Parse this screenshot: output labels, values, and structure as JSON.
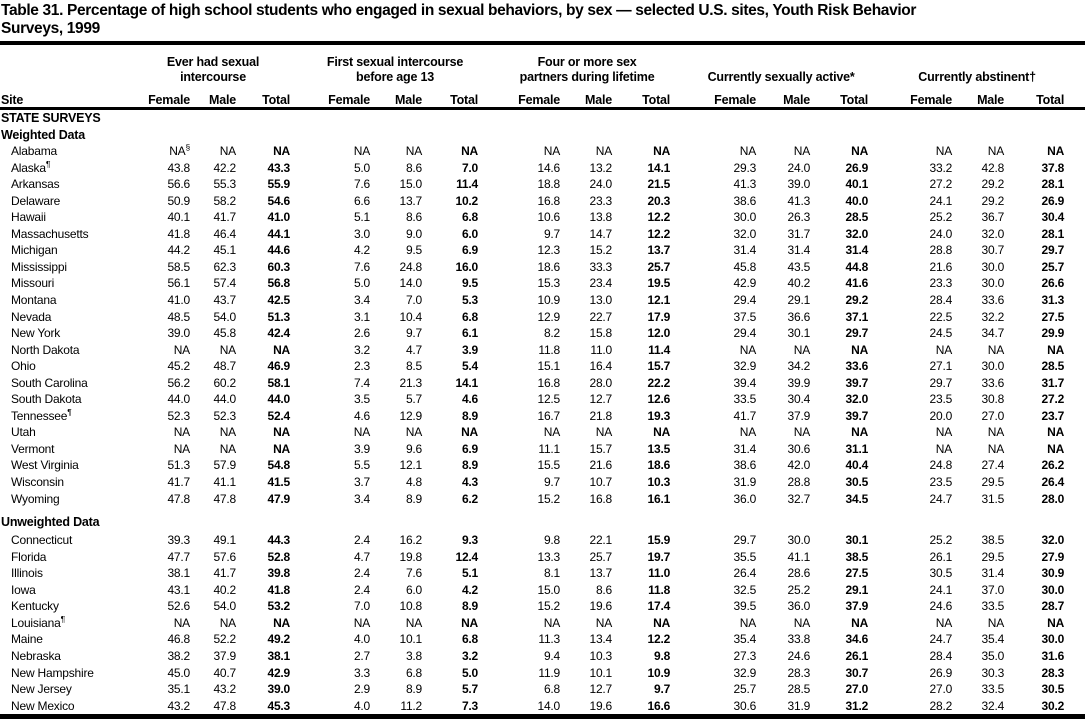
{
  "title": {
    "line1": "Table 31. Percentage of high school students who engaged in sexual behaviors, by sex — selected U.S. sites, Youth Risk Behavior",
    "line2": "Surveys, 1999"
  },
  "table": {
    "site_header": "Site",
    "sub_headers": [
      "Female",
      "Male",
      "Total"
    ],
    "col_groups": [
      {
        "label": "Ever had sexual\nintercourse"
      },
      {
        "label": "First sexual intercourse\nbefore age 13"
      },
      {
        "label": "Four or more sex\npartners during lifetime"
      },
      {
        "label": "Currently sexually active*"
      },
      {
        "label": "Currently abstinent†"
      }
    ],
    "sections": [
      {
        "heading": "STATE SURVEYS",
        "subheading": "Weighted Data",
        "rows": [
          {
            "site": "Alabama",
            "values": [
              "NA§",
              "NA",
              "NA",
              "NA",
              "NA",
              "NA",
              "NA",
              "NA",
              "NA",
              "NA",
              "NA",
              "NA",
              "NA",
              "NA",
              "NA"
            ]
          },
          {
            "site": "Alaska¶",
            "values": [
              "43.8",
              "42.2",
              "43.3",
              "5.0",
              "8.6",
              "7.0",
              "14.6",
              "13.2",
              "14.1",
              "29.3",
              "24.0",
              "26.9",
              "33.2",
              "42.8",
              "37.8"
            ]
          },
          {
            "site": "Arkansas",
            "values": [
              "56.6",
              "55.3",
              "55.9",
              "7.6",
              "15.0",
              "11.4",
              "18.8",
              "24.0",
              "21.5",
              "41.3",
              "39.0",
              "40.1",
              "27.2",
              "29.2",
              "28.1"
            ]
          },
          {
            "site": "Delaware",
            "values": [
              "50.9",
              "58.2",
              "54.6",
              "6.6",
              "13.7",
              "10.2",
              "16.8",
              "23.3",
              "20.3",
              "38.6",
              "41.3",
              "40.0",
              "24.1",
              "29.2",
              "26.9"
            ]
          },
          {
            "site": "Hawaii",
            "values": [
              "40.1",
              "41.7",
              "41.0",
              "5.1",
              "8.6",
              "6.8",
              "10.6",
              "13.8",
              "12.2",
              "30.0",
              "26.3",
              "28.5",
              "25.2",
              "36.7",
              "30.4"
            ]
          },
          {
            "site": "Massachusetts",
            "values": [
              "41.8",
              "46.4",
              "44.1",
              "3.0",
              "9.0",
              "6.0",
              "9.7",
              "14.7",
              "12.2",
              "32.0",
              "31.7",
              "32.0",
              "24.0",
              "32.0",
              "28.1"
            ]
          },
          {
            "site": "Michigan",
            "values": [
              "44.2",
              "45.1",
              "44.6",
              "4.2",
              "9.5",
              "6.9",
              "12.3",
              "15.2",
              "13.7",
              "31.4",
              "31.4",
              "31.4",
              "28.8",
              "30.7",
              "29.7"
            ]
          },
          {
            "site": "Mississippi",
            "values": [
              "58.5",
              "62.3",
              "60.3",
              "7.6",
              "24.8",
              "16.0",
              "18.6",
              "33.3",
              "25.7",
              "45.8",
              "43.5",
              "44.8",
              "21.6",
              "30.0",
              "25.7"
            ]
          },
          {
            "site": "Missouri",
            "values": [
              "56.1",
              "57.4",
              "56.8",
              "5.0",
              "14.0",
              "9.5",
              "15.3",
              "23.4",
              "19.5",
              "42.9",
              "40.2",
              "41.6",
              "23.3",
              "30.0",
              "26.6"
            ]
          },
          {
            "site": "Montana",
            "values": [
              "41.0",
              "43.7",
              "42.5",
              "3.4",
              "7.0",
              "5.3",
              "10.9",
              "13.0",
              "12.1",
              "29.4",
              "29.1",
              "29.2",
              "28.4",
              "33.6",
              "31.3"
            ]
          },
          {
            "site": "Nevada",
            "values": [
              "48.5",
              "54.0",
              "51.3",
              "3.1",
              "10.4",
              "6.8",
              "12.9",
              "22.7",
              "17.9",
              "37.5",
              "36.6",
              "37.1",
              "22.5",
              "32.2",
              "27.5"
            ]
          },
          {
            "site": "New York",
            "values": [
              "39.0",
              "45.8",
              "42.4",
              "2.6",
              "9.7",
              "6.1",
              "8.2",
              "15.8",
              "12.0",
              "29.4",
              "30.1",
              "29.7",
              "24.5",
              "34.7",
              "29.9"
            ]
          },
          {
            "site": "North Dakota",
            "values": [
              "NA",
              "NA",
              "NA",
              "3.2",
              "4.7",
              "3.9",
              "11.8",
              "11.0",
              "11.4",
              "NA",
              "NA",
              "NA",
              "NA",
              "NA",
              "NA"
            ]
          },
          {
            "site": "Ohio",
            "values": [
              "45.2",
              "48.7",
              "46.9",
              "2.3",
              "8.5",
              "5.4",
              "15.1",
              "16.4",
              "15.7",
              "32.9",
              "34.2",
              "33.6",
              "27.1",
              "30.0",
              "28.5"
            ]
          },
          {
            "site": "South Carolina",
            "values": [
              "56.2",
              "60.2",
              "58.1",
              "7.4",
              "21.3",
              "14.1",
              "16.8",
              "28.0",
              "22.2",
              "39.4",
              "39.9",
              "39.7",
              "29.7",
              "33.6",
              "31.7"
            ]
          },
          {
            "site": "South Dakota",
            "values": [
              "44.0",
              "44.0",
              "44.0",
              "3.5",
              "5.7",
              "4.6",
              "12.5",
              "12.7",
              "12.6",
              "33.5",
              "30.4",
              "32.0",
              "23.5",
              "30.8",
              "27.2"
            ]
          },
          {
            "site": "Tennessee¶",
            "values": [
              "52.3",
              "52.3",
              "52.4",
              "4.6",
              "12.9",
              "8.9",
              "16.7",
              "21.8",
              "19.3",
              "41.7",
              "37.9",
              "39.7",
              "20.0",
              "27.0",
              "23.7"
            ]
          },
          {
            "site": "Utah",
            "values": [
              "NA",
              "NA",
              "NA",
              "NA",
              "NA",
              "NA",
              "NA",
              "NA",
              "NA",
              "NA",
              "NA",
              "NA",
              "NA",
              "NA",
              "NA"
            ]
          },
          {
            "site": "Vermont",
            "values": [
              "NA",
              "NA",
              "NA",
              "3.9",
              "9.6",
              "6.9",
              "11.1",
              "15.7",
              "13.5",
              "31.4",
              "30.6",
              "31.1",
              "NA",
              "NA",
              "NA"
            ]
          },
          {
            "site": "West Virginia",
            "values": [
              "51.3",
              "57.9",
              "54.8",
              "5.5",
              "12.1",
              "8.9",
              "15.5",
              "21.6",
              "18.6",
              "38.6",
              "42.0",
              "40.4",
              "24.8",
              "27.4",
              "26.2"
            ]
          },
          {
            "site": "Wisconsin",
            "values": [
              "41.7",
              "41.1",
              "41.5",
              "3.7",
              "4.8",
              "4.3",
              "9.7",
              "10.7",
              "10.3",
              "31.9",
              "28.8",
              "30.5",
              "23.5",
              "29.5",
              "26.4"
            ]
          },
          {
            "site": "Wyoming",
            "values": [
              "47.8",
              "47.8",
              "47.9",
              "3.4",
              "8.9",
              "6.2",
              "15.2",
              "16.8",
              "16.1",
              "36.0",
              "32.7",
              "34.5",
              "24.7",
              "31.5",
              "28.0"
            ]
          }
        ]
      },
      {
        "heading": null,
        "subheading": "Unweighted Data",
        "rows": [
          {
            "site": "Connecticut",
            "values": [
              "39.3",
              "49.1",
              "44.3",
              "2.4",
              "16.2",
              "9.3",
              "9.8",
              "22.1",
              "15.9",
              "29.7",
              "30.0",
              "30.1",
              "25.2",
              "38.5",
              "32.0"
            ]
          },
          {
            "site": "Florida",
            "values": [
              "47.7",
              "57.6",
              "52.8",
              "4.7",
              "19.8",
              "12.4",
              "13.3",
              "25.7",
              "19.7",
              "35.5",
              "41.1",
              "38.5",
              "26.1",
              "29.5",
              "27.9"
            ]
          },
          {
            "site": "Illinois",
            "values": [
              "38.1",
              "41.7",
              "39.8",
              "2.4",
              "7.6",
              "5.1",
              "8.1",
              "13.7",
              "11.0",
              "26.4",
              "28.6",
              "27.5",
              "30.5",
              "31.4",
              "30.9"
            ]
          },
          {
            "site": "Iowa",
            "values": [
              "43.1",
              "40.2",
              "41.8",
              "2.4",
              "6.0",
              "4.2",
              "15.0",
              "8.6",
              "11.8",
              "32.5",
              "25.2",
              "29.1",
              "24.1",
              "37.0",
              "30.0"
            ]
          },
          {
            "site": "Kentucky",
            "values": [
              "52.6",
              "54.0",
              "53.2",
              "7.0",
              "10.8",
              "8.9",
              "15.2",
              "19.6",
              "17.4",
              "39.5",
              "36.0",
              "37.9",
              "24.6",
              "33.5",
              "28.7"
            ]
          },
          {
            "site": "Louisiana¶",
            "values": [
              "NA",
              "NA",
              "NA",
              "NA",
              "NA",
              "NA",
              "NA",
              "NA",
              "NA",
              "NA",
              "NA",
              "NA",
              "NA",
              "NA",
              "NA"
            ]
          },
          {
            "site": "Maine",
            "values": [
              "46.8",
              "52.2",
              "49.2",
              "4.0",
              "10.1",
              "6.8",
              "11.3",
              "13.4",
              "12.2",
              "35.4",
              "33.8",
              "34.6",
              "24.7",
              "35.4",
              "30.0"
            ]
          },
          {
            "site": "Nebraska",
            "values": [
              "38.2",
              "37.9",
              "38.1",
              "2.7",
              "3.8",
              "3.2",
              "9.4",
              "10.3",
              "9.8",
              "27.3",
              "24.6",
              "26.1",
              "28.4",
              "35.0",
              "31.6"
            ]
          },
          {
            "site": "New Hampshire",
            "values": [
              "45.0",
              "40.7",
              "42.9",
              "3.3",
              "6.8",
              "5.0",
              "11.9",
              "10.1",
              "10.9",
              "32.9",
              "28.3",
              "30.7",
              "26.9",
              "30.3",
              "28.3"
            ]
          },
          {
            "site": "New Jersey",
            "values": [
              "35.1",
              "43.2",
              "39.0",
              "2.9",
              "8.9",
              "5.7",
              "6.8",
              "12.7",
              "9.7",
              "25.7",
              "28.5",
              "27.0",
              "27.0",
              "33.5",
              "30.5"
            ]
          },
          {
            "site": "New Mexico",
            "values": [
              "43.2",
              "47.8",
              "45.3",
              "4.0",
              "11.2",
              "7.3",
              "14.0",
              "19.6",
              "16.6",
              "30.6",
              "31.9",
              "31.2",
              "28.2",
              "32.4",
              "30.2"
            ]
          }
        ]
      }
    ]
  }
}
